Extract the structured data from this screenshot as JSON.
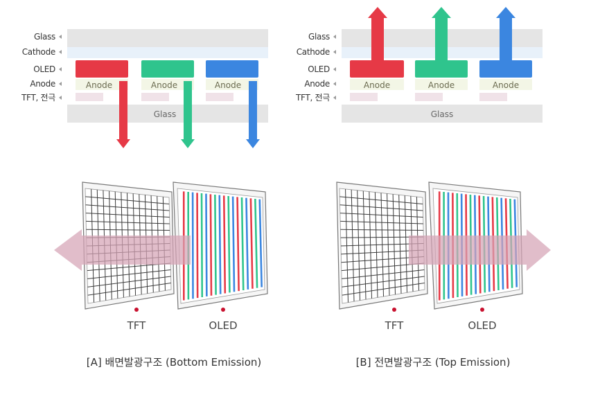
{
  "colors": {
    "red": "#e63946",
    "green": "#2fc48d",
    "blue": "#3b86e0",
    "glass": "#e5e5e5",
    "cathode": "#e8f1fa",
    "anode_bg": "#f3f6e6",
    "tft_electrode": "#f0e2e8",
    "light_arrow": "#d6a3b6",
    "dot": "#c8102e"
  },
  "layer_labels": [
    "Glass",
    "Cathode",
    "OLED",
    "Anode",
    "TFT, 전극"
  ],
  "anode_label": "Anode",
  "glass_label": "Glass",
  "panels": {
    "tft": "TFT",
    "oled": "OLED"
  },
  "bottom_emission": {
    "caption": "[A] 배면발광구조 (Bottom Emission)",
    "light_direction": "left"
  },
  "top_emission": {
    "caption": "[B] 전면발광구조 (Top Emission)",
    "light_direction": "right"
  }
}
